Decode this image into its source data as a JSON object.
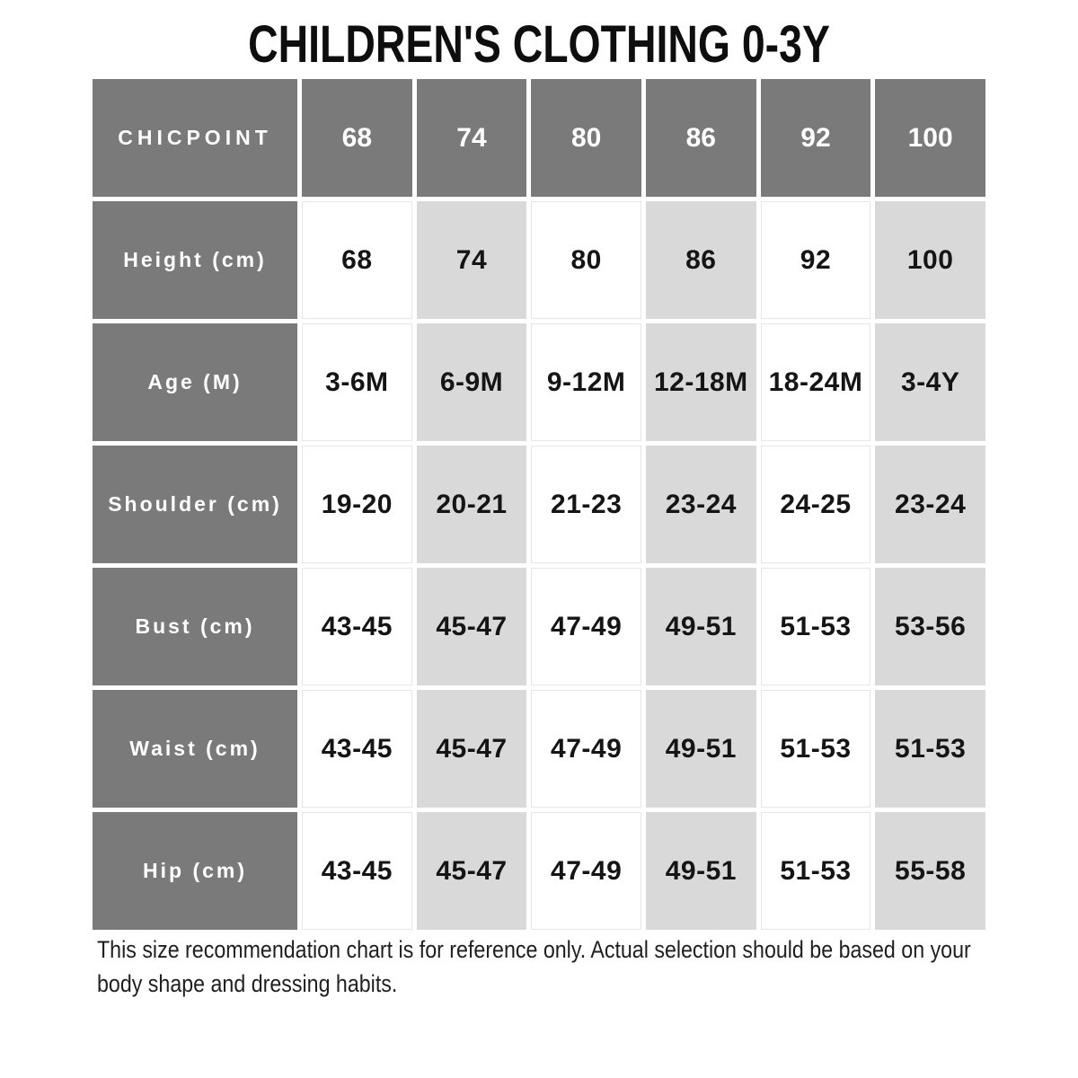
{
  "colors": {
    "header_bg": "#7a7a7a",
    "alt_cell_bg": "#d9d9d9",
    "cell_bg": "#ffffff",
    "header_text": "#ffffff",
    "value_text": "#151515",
    "title_text": "#0e0e0e",
    "note_text": "#1f1f1f"
  },
  "chart_data": {
    "type": "table",
    "title": "CHILDREN'S CLOTHING 0-3Y",
    "brand": "CHICPOINT",
    "columns": [
      "CHICPOINT",
      "68",
      "74",
      "80",
      "86",
      "92",
      "100"
    ],
    "rows": [
      [
        "Height (cm)",
        "68",
        "74",
        "80",
        "86",
        "92",
        "100"
      ],
      [
        "Age (M)",
        "3-6M",
        "6-9M",
        "9-12M",
        "12-18M",
        "18-24M",
        "3-4Y"
      ],
      [
        "Shoulder (cm)",
        "19-20",
        "20-21",
        "21-23",
        "23-24",
        "24-25",
        "23-24"
      ],
      [
        "Bust (cm)",
        "43-45",
        "45-47",
        "47-49",
        "49-51",
        "51-53",
        "53-56"
      ],
      [
        "Waist (cm)",
        "43-45",
        "45-47",
        "47-49",
        "49-51",
        "51-53",
        "51-53"
      ],
      [
        "Hip (cm)",
        "43-45",
        "45-47",
        "47-49",
        "49-51",
        "51-53",
        "55-58"
      ]
    ],
    "note": "This size recommendation chart is for reference only. Actual selection should be based on your body shape and dressing habits.",
    "legend_position": "none",
    "grid": "separated-cells"
  }
}
